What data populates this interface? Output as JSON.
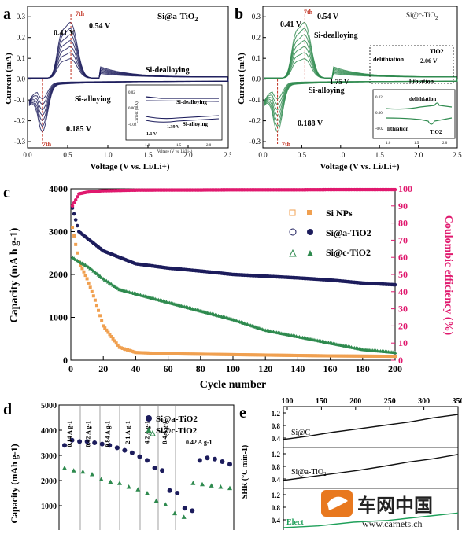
{
  "panel_letters": [
    "a",
    "b",
    "c",
    "d",
    "e"
  ],
  "watermark": {
    "brand_cn": "车网中国",
    "url": "www.carnets.ch"
  },
  "chart_data": [
    {
      "id": "a",
      "type": "line",
      "title": "Si@a-TiO2",
      "title_main": "Si@a-TiO",
      "title_sub": "2",
      "xlabel": "Voltage (V vs. Li/Li+)",
      "ylabel": "Current (mA)",
      "xlim": [
        0,
        2.5
      ],
      "ylim": [
        -0.33,
        0.35
      ],
      "xticks": [
        0.0,
        0.5,
        1.0,
        1.5,
        2.0,
        2.5
      ],
      "yticks": [
        -0.3,
        -0.2,
        -0.1,
        0.0,
        0.1,
        0.2,
        0.3
      ],
      "annotations": [
        "0.41 V",
        "0.54 V",
        "7th",
        "Si-dealloying",
        "Si-alloying",
        "0.185 V",
        "7th"
      ],
      "inset": {
        "xlabel": "Voltage (V vs. Li/Li+)",
        "ylabel": "Current (mA)",
        "xticks": [
          "1.0",
          "1.5",
          "2.0"
        ],
        "yticks": [
          "0.02",
          "0.00",
          "-0.02"
        ],
        "annotations": [
          "Si-dealloying",
          "Si-alloying",
          "1.1 V",
          "1.39 V"
        ]
      },
      "peaks": {
        "anodic": [
          0.41,
          0.54
        ],
        "cathodic": 0.185
      },
      "cycles": 7
    },
    {
      "id": "b",
      "type": "line",
      "title": "Si@c-TiO2",
      "title_main": "Si@c-TiO",
      "title_sub": "2",
      "xlabel": "Voltage (V vs. Li/Li+)",
      "ylabel": "Current (mA)",
      "xlim": [
        0,
        2.5
      ],
      "ylim": [
        -0.33,
        0.35
      ],
      "xticks": [
        0.0,
        0.5,
        1.0,
        1.5,
        2.0,
        2.5
      ],
      "yticks": [
        -0.3,
        -0.2,
        -0.1,
        0.0,
        0.1,
        0.2,
        0.3
      ],
      "annotations": [
        "0.41 V",
        "0.54 V",
        "7th",
        "Si-dealloying",
        "delithiation",
        "TiO2",
        "2.06 V",
        "1.75 V",
        "lithiation",
        "Si-alloying",
        "0.188 V",
        "7th"
      ],
      "inset": {
        "xlabel": "Voltage (V vs. Li/Li+)",
        "ylabel": "Current (mA)",
        "xticks": [
          "1.0",
          "1.5",
          "2.0"
        ],
        "yticks": [
          "0.02",
          "0.00",
          "-0.02"
        ],
        "annotations": [
          "delithiation",
          "lithiation",
          "TiO2"
        ]
      },
      "peaks": {
        "anodic": [
          0.41,
          0.54
        ],
        "cathodic": 0.188
      },
      "cycles": 7
    },
    {
      "id": "c",
      "type": "scatter",
      "xlabel": "Cycle number",
      "ylabel": "Capacity (mA h g-1)",
      "y2label": "Coulombic efficiency (%)",
      "xlim": [
        0,
        200
      ],
      "ylim": [
        0,
        4000
      ],
      "y2lim": [
        0,
        100
      ],
      "xticks": [
        0,
        20,
        40,
        60,
        80,
        100,
        120,
        140,
        160,
        180,
        200
      ],
      "yticks": [
        0,
        1000,
        2000,
        3000,
        4000
      ],
      "y2ticks": [
        0,
        10,
        20,
        30,
        40,
        50,
        60,
        70,
        80,
        90,
        100
      ],
      "legend_position": "top-right",
      "x": [
        1,
        5,
        10,
        15,
        20,
        30,
        40,
        60,
        80,
        100,
        120,
        140,
        160,
        180,
        200
      ],
      "series": [
        {
          "name": "Si NPs",
          "color": "#f0a050",
          "values": [
            3100,
            2300,
            1900,
            1400,
            800,
            300,
            180,
            150,
            140,
            130,
            120,
            110,
            100,
            95,
            90
          ]
        },
        {
          "name": "Si@a-TiO2",
          "color": "#1c1c5c",
          "values": [
            3550,
            3000,
            2850,
            2700,
            2550,
            2400,
            2250,
            2150,
            2080,
            2000,
            1960,
            1920,
            1870,
            1800,
            1760
          ]
        },
        {
          "name": "Si@c-TiO2",
          "color": "#2e8a4e",
          "values": [
            2400,
            2300,
            2200,
            2050,
            1900,
            1650,
            1550,
            1350,
            1150,
            950,
            700,
            550,
            400,
            250,
            180
          ]
        },
        {
          "name": "Coulombic efficiency",
          "color": "#e0196e",
          "values": [
            90,
            97,
            98,
            98.5,
            98.8,
            99,
            99.2,
            99.3,
            99.3,
            99.4,
            99.4,
            99.4,
            99.5,
            99.5,
            99.5
          ]
        }
      ]
    },
    {
      "id": "d",
      "type": "scatter",
      "xlabel": "",
      "ylabel": "Capacity (mAh g-1)",
      "ylim": [
        0,
        5000
      ],
      "yticks": [
        1000,
        2000,
        3000,
        4000,
        5000
      ],
      "legend_position": "top-right",
      "rate_labels": [
        "0.14 A g-1",
        "0.42 A g-1",
        "0.84 A g-1",
        "2.1 A g-1",
        "4.2 A g-1",
        "8.4 A g-1",
        "0.42 A g-1"
      ],
      "series": [
        {
          "name": "Si@a-TiO2",
          "color": "#1c1c5c",
          "values": [
            3400,
            3600,
            3550,
            3550,
            3500,
            3450,
            3400,
            3300,
            3200,
            3100,
            2950,
            2800,
            2500,
            2400,
            1600,
            1500,
            900,
            800,
            2800,
            2900,
            2850,
            2750,
            2650
          ]
        },
        {
          "name": "Si@c-TiO2",
          "color": "#2e8a4e",
          "values": [
            2500,
            2400,
            2350,
            2250,
            2050,
            1950,
            1900,
            1750,
            1650,
            1500,
            1200,
            1050,
            700,
            550,
            1900,
            1850,
            1800,
            1750,
            1700
          ]
        }
      ]
    },
    {
      "id": "e",
      "type": "line",
      "xlabel": "",
      "ylabel": "SHR (°C min-1)",
      "xticks": [
        100,
        150,
        200,
        250,
        300,
        350
      ],
      "yticks": [
        "1.2",
        "0.8",
        "0.4"
      ],
      "series": [
        {
          "name": "Si@C",
          "label_main": "Si@C",
          "label_sub": "",
          "color": "#111111",
          "values": [
            0.4,
            0.5,
            0.62,
            0.72,
            0.82,
            0.92,
            1.05,
            1.15
          ]
        },
        {
          "name": "Si@a-TiO2",
          "label_main": "Si@a-TiO",
          "label_sub": "2",
          "color": "#111111",
          "values": [
            0.4,
            0.5,
            0.6,
            0.7,
            0.82,
            0.95,
            1.05,
            1.18
          ]
        },
        {
          "name": "Elect",
          "label_main": "Elect",
          "label_sub": "",
          "color": "#1fa05a",
          "values": [
            0.3,
            0.35,
            0.45,
            0.5,
            0.6,
            0.7
          ]
        }
      ]
    }
  ]
}
